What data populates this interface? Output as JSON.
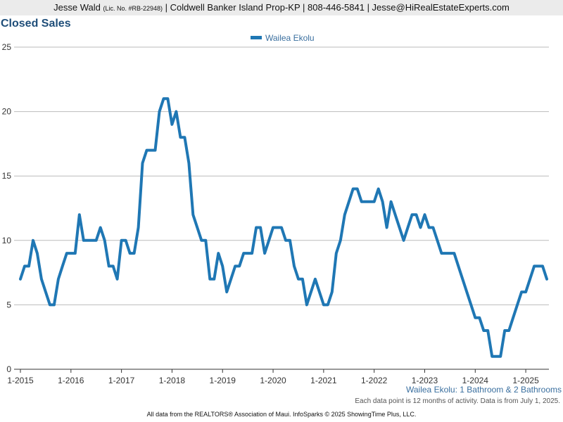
{
  "header": {
    "agent_name": "Jesse Wald",
    "license": "(Lic. No. #RB-22948)",
    "rest": "| Coldwell Banker Island Prop-KP | 808-446-5841 | Jesse@HiRealEstateExperts.com"
  },
  "colors": {
    "series": "#1f77b4",
    "title": "#1f4e79",
    "grid": "#bbbbbb"
  },
  "chart_data": {
    "type": "line",
    "title": "Closed Sales",
    "legend_position": "top-center",
    "grid": true,
    "x_tick_labels": [
      "1-2015",
      "1-2016",
      "1-2017",
      "1-2018",
      "1-2019",
      "1-2020",
      "1-2021",
      "1-2022",
      "1-2023",
      "1-2024",
      "1-2025"
    ],
    "ylim": [
      0,
      25
    ],
    "y_ticks": [
      0,
      5,
      10,
      15,
      20,
      25
    ],
    "x_start": "1-2015",
    "x_step": "1 month",
    "series": [
      {
        "name": "Wailea Ekolu",
        "values": [
          7,
          8,
          8,
          10,
          9,
          7,
          6,
          5,
          5,
          7,
          8,
          9,
          9,
          9,
          12,
          10,
          10,
          10,
          10,
          11,
          10,
          8,
          8,
          7,
          10,
          10,
          9,
          9,
          11,
          16,
          17,
          17,
          17,
          20,
          21,
          21,
          19,
          20,
          18,
          18,
          16,
          12,
          11,
          10,
          10,
          7,
          7,
          9,
          8,
          6,
          7,
          8,
          8,
          9,
          9,
          9,
          11,
          11,
          9,
          10,
          11,
          11,
          11,
          10,
          10,
          8,
          7,
          7,
          5,
          6,
          7,
          6,
          5,
          5,
          6,
          9,
          10,
          12,
          13,
          14,
          14,
          13,
          13,
          13,
          13,
          14,
          13,
          11,
          13,
          12,
          11,
          10,
          11,
          12,
          12,
          11,
          12,
          11,
          11,
          10,
          9,
          9,
          9,
          9,
          8,
          7,
          6,
          5,
          4,
          4,
          3,
          3,
          1,
          1,
          1,
          3,
          3,
          4,
          5,
          6,
          6,
          7,
          8,
          8,
          8,
          7
        ]
      }
    ]
  },
  "footer": {
    "series_note": "Wailea Ekolu: 1 Bathroom & 2 Bathrooms",
    "activity_note": "Each data point is 12 months of activity. Data is from July 1, 2025.",
    "source_note": "All data from the REALTORS® Association of Maui. InfoSparks © 2025 ShowingTime Plus, LLC."
  }
}
